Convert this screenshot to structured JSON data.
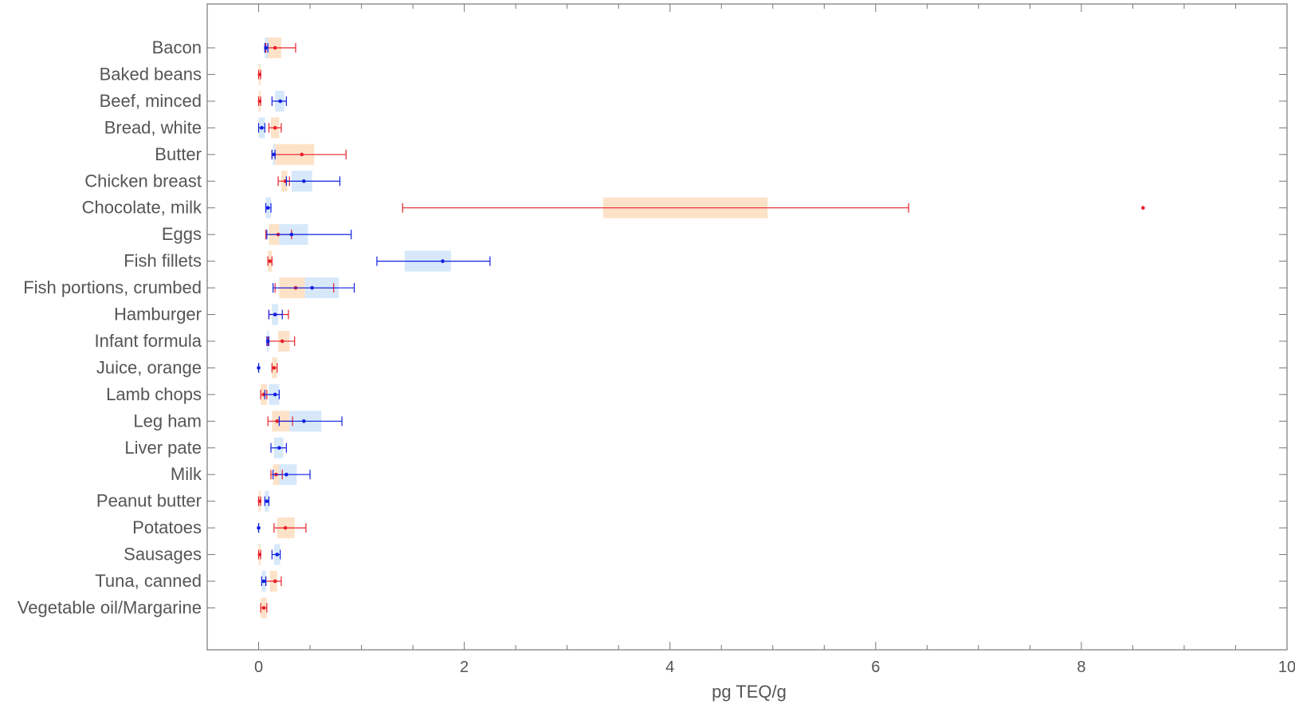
{
  "chart_data": {
    "type": "box",
    "orientation": "horizontal",
    "xlabel": "pg TEQ/g",
    "xlim": [
      -0.5,
      10
    ],
    "xticks": [
      0,
      2,
      4,
      6,
      8,
      10
    ],
    "grid": false,
    "series": [
      {
        "color": "#e8202a",
        "box_fill": "#fde2c8"
      },
      {
        "color": "#1020e0",
        "box_fill": "#d6e8fa"
      }
    ],
    "categories": [
      "Bacon",
      "Baked beans",
      "Beef, minced",
      "Bread, white",
      "Butter",
      "Chicken breast",
      "Chocolate, milk",
      "Eggs",
      "Fish fillets",
      "Fish portions, crumbed",
      "Hamburger",
      "Infant formula",
      "Juice, orange",
      "Lamb chops",
      "Leg ham",
      "Liver pate",
      "Milk",
      "Peanut butter",
      "Potatoes",
      "Sausages",
      "Tuna, canned",
      "Vegetable oil/Margarine"
    ],
    "boxes": [
      {
        "category": "Bacon",
        "series": 0,
        "whisker_low": 0.07,
        "q1": 0.07,
        "q3": 0.22,
        "whisker_high": 0.36,
        "point": 0.16
      },
      {
        "category": "Bacon",
        "series": 1,
        "whisker_low": 0.06,
        "q1": 0.06,
        "q3": 0.09,
        "whisker_high": 0.09,
        "point": 0.07
      },
      {
        "category": "Baked beans",
        "series": 0,
        "whisker_low": 0.0,
        "q1": 0.0,
        "q3": 0.02,
        "whisker_high": 0.02,
        "point": 0.01
      },
      {
        "category": "Beef, minced",
        "series": 0,
        "whisker_low": 0.0,
        "q1": 0.0,
        "q3": 0.02,
        "whisker_high": 0.02,
        "point": 0.01
      },
      {
        "category": "Beef, minced",
        "series": 1,
        "whisker_low": 0.13,
        "q1": 0.16,
        "q3": 0.25,
        "whisker_high": 0.27,
        "point": 0.21
      },
      {
        "category": "Bread, white",
        "series": 0,
        "whisker_low": 0.1,
        "q1": 0.12,
        "q3": 0.2,
        "whisker_high": 0.22,
        "point": 0.16
      },
      {
        "category": "Bread, white",
        "series": 1,
        "whisker_low": 0.0,
        "q1": 0.0,
        "q3": 0.06,
        "whisker_high": 0.06,
        "point": 0.03
      },
      {
        "category": "Butter",
        "series": 0,
        "whisker_low": 0.13,
        "q1": 0.16,
        "q3": 0.54,
        "whisker_high": 0.85,
        "point": 0.42
      },
      {
        "category": "Butter",
        "series": 1,
        "whisker_low": 0.13,
        "q1": 0.14,
        "q3": 0.16,
        "whisker_high": 0.16,
        "point": 0.15
      },
      {
        "category": "Chicken breast",
        "series": 0,
        "whisker_low": 0.19,
        "q1": 0.22,
        "q3": 0.28,
        "whisker_high": 0.3,
        "point": 0.26
      },
      {
        "category": "Chicken breast",
        "series": 1,
        "whisker_low": 0.27,
        "q1": 0.32,
        "q3": 0.52,
        "whisker_high": 0.79,
        "point": 0.44
      },
      {
        "category": "Chocolate, milk",
        "series": 0,
        "whisker_low": 1.4,
        "q1": 3.35,
        "q3": 4.95,
        "whisker_high": 6.32,
        "point": 8.6
      },
      {
        "category": "Chocolate, milk",
        "series": 1,
        "whisker_low": 0.07,
        "q1": 0.07,
        "q3": 0.12,
        "whisker_high": 0.12,
        "point": 0.09
      },
      {
        "category": "Eggs",
        "series": 0,
        "whisker_low": 0.07,
        "q1": 0.1,
        "q3": 0.22,
        "whisker_high": 0.32,
        "point": 0.19
      },
      {
        "category": "Eggs",
        "series": 1,
        "whisker_low": 0.08,
        "q1": 0.2,
        "q3": 0.48,
        "whisker_high": 0.9,
        "point": 0.32
      },
      {
        "category": "Fish fillets",
        "series": 0,
        "whisker_low": 0.09,
        "q1": 0.09,
        "q3": 0.13,
        "whisker_high": 0.13,
        "point": 0.11
      },
      {
        "category": "Fish fillets",
        "series": 1,
        "whisker_low": 1.15,
        "q1": 1.42,
        "q3": 1.87,
        "whisker_high": 2.25,
        "point": 1.79
      },
      {
        "category": "Fish portions, crumbed",
        "series": 0,
        "whisker_low": 0.16,
        "q1": 0.2,
        "q3": 0.45,
        "whisker_high": 0.73,
        "point": 0.36
      },
      {
        "category": "Fish portions, crumbed",
        "series": 1,
        "whisker_low": 0.14,
        "q1": 0.45,
        "q3": 0.78,
        "whisker_high": 0.93,
        "point": 0.52
      },
      {
        "category": "Hamburger",
        "series": 0,
        "whisker_low": 0.1,
        "q1": 0.13,
        "q3": 0.19,
        "whisker_high": 0.29,
        "point": 0.16
      },
      {
        "category": "Hamburger",
        "series": 1,
        "whisker_low": 0.1,
        "q1": 0.13,
        "q3": 0.19,
        "whisker_high": 0.23,
        "point": 0.16
      },
      {
        "category": "Infant formula",
        "series": 0,
        "whisker_low": 0.09,
        "q1": 0.19,
        "q3": 0.3,
        "whisker_high": 0.35,
        "point": 0.23
      },
      {
        "category": "Infant formula",
        "series": 1,
        "whisker_low": 0.08,
        "q1": 0.08,
        "q3": 0.1,
        "whisker_high": 0.1,
        "point": 0.09
      },
      {
        "category": "Juice, orange",
        "series": 0,
        "whisker_low": 0.13,
        "q1": 0.13,
        "q3": 0.18,
        "whisker_high": 0.18,
        "point": 0.15
      },
      {
        "category": "Juice, orange",
        "series": 1,
        "whisker_low": 0.0,
        "q1": 0.0,
        "q3": 0.0,
        "whisker_high": 0.0,
        "point": 0.0
      },
      {
        "category": "Lamb chops",
        "series": 0,
        "whisker_low": 0.02,
        "q1": 0.02,
        "q3": 0.08,
        "whisker_high": 0.08,
        "point": 0.05
      },
      {
        "category": "Lamb chops",
        "series": 1,
        "whisker_low": 0.06,
        "q1": 0.1,
        "q3": 0.2,
        "whisker_high": 0.2,
        "point": 0.16
      },
      {
        "category": "Leg ham",
        "series": 0,
        "whisker_low": 0.09,
        "q1": 0.13,
        "q3": 0.3,
        "whisker_high": 0.33,
        "point": 0.18
      },
      {
        "category": "Leg ham",
        "series": 1,
        "whisker_low": 0.2,
        "q1": 0.3,
        "q3": 0.61,
        "whisker_high": 0.81,
        "point": 0.44
      },
      {
        "category": "Liver pate",
        "series": 1,
        "whisker_low": 0.12,
        "q1": 0.15,
        "q3": 0.24,
        "whisker_high": 0.27,
        "point": 0.2
      },
      {
        "category": "Milk",
        "series": 0,
        "whisker_low": 0.12,
        "q1": 0.14,
        "q3": 0.23,
        "whisker_high": 0.23,
        "point": 0.17
      },
      {
        "category": "Milk",
        "series": 1,
        "whisker_low": 0.14,
        "q1": 0.2,
        "q3": 0.37,
        "whisker_high": 0.5,
        "point": 0.27
      },
      {
        "category": "Peanut butter",
        "series": 0,
        "whisker_low": 0.0,
        "q1": 0.0,
        "q3": 0.02,
        "whisker_high": 0.02,
        "point": 0.01
      },
      {
        "category": "Peanut butter",
        "series": 1,
        "whisker_low": 0.06,
        "q1": 0.06,
        "q3": 0.1,
        "whisker_high": 0.1,
        "point": 0.08
      },
      {
        "category": "Potatoes",
        "series": 0,
        "whisker_low": 0.15,
        "q1": 0.18,
        "q3": 0.35,
        "whisker_high": 0.46,
        "point": 0.26
      },
      {
        "category": "Potatoes",
        "series": 1,
        "whisker_low": 0.0,
        "q1": 0.0,
        "q3": 0.0,
        "whisker_high": 0.0,
        "point": 0.0
      },
      {
        "category": "Sausages",
        "series": 0,
        "whisker_low": 0.0,
        "q1": 0.0,
        "q3": 0.02,
        "whisker_high": 0.02,
        "point": 0.01
      },
      {
        "category": "Sausages",
        "series": 1,
        "whisker_low": 0.13,
        "q1": 0.15,
        "q3": 0.21,
        "whisker_high": 0.21,
        "point": 0.18
      },
      {
        "category": "Tuna, canned",
        "series": 0,
        "whisker_low": 0.07,
        "q1": 0.11,
        "q3": 0.18,
        "whisker_high": 0.22,
        "point": 0.16
      },
      {
        "category": "Tuna, canned",
        "series": 1,
        "whisker_low": 0.03,
        "q1": 0.03,
        "q3": 0.07,
        "whisker_high": 0.07,
        "point": 0.05
      },
      {
        "category": "Vegetable oil/Margarine",
        "series": 0,
        "whisker_low": 0.02,
        "q1": 0.02,
        "q3": 0.08,
        "whisker_high": 0.08,
        "point": 0.05
      }
    ]
  }
}
